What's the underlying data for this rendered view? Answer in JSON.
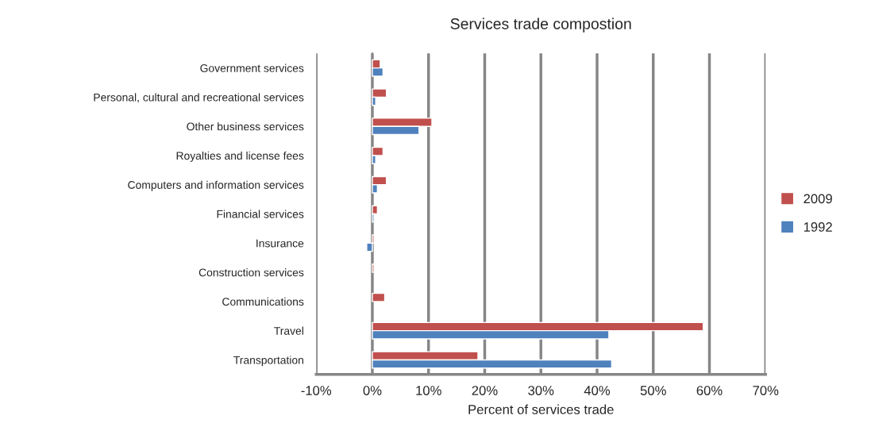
{
  "chart_data": {
    "type": "bar",
    "orientation": "horizontal",
    "title": "Services trade compostion",
    "xlabel": "Percent of services trade",
    "categories": [
      "Government services",
      "Personal, cultural and recreational services",
      "Other business services",
      "Royalties and license fees",
      "Computers and information services",
      "Financial services",
      "Insurance",
      "Construction services",
      "Communications",
      "Travel",
      "Transportation"
    ],
    "series": [
      {
        "name": "2009",
        "color": "#c0504d",
        "values": [
          1.4,
          2.5,
          10.6,
          1.9,
          2.5,
          0.9,
          0.3,
          0.3,
          2.2,
          58.9,
          18.8
        ]
      },
      {
        "name": "1992",
        "color": "#4f81bd",
        "values": [
          1.9,
          0.6,
          8.3,
          0.6,
          0.9,
          0.3,
          -1.0,
          null,
          null,
          42.1,
          42.6
        ]
      }
    ],
    "xlim": [
      -10,
      70
    ],
    "xticks": [
      {
        "value": -10,
        "label": "-10%"
      },
      {
        "value": 0,
        "label": "0%"
      },
      {
        "value": 10,
        "label": "10%"
      },
      {
        "value": 20,
        "label": "20%"
      },
      {
        "value": 30,
        "label": "30%"
      },
      {
        "value": 40,
        "label": "40%"
      },
      {
        "value": 50,
        "label": "50%"
      },
      {
        "value": 60,
        "label": "60%"
      },
      {
        "value": 70,
        "label": "70%"
      }
    ],
    "grid": "x",
    "legend": "right"
  }
}
